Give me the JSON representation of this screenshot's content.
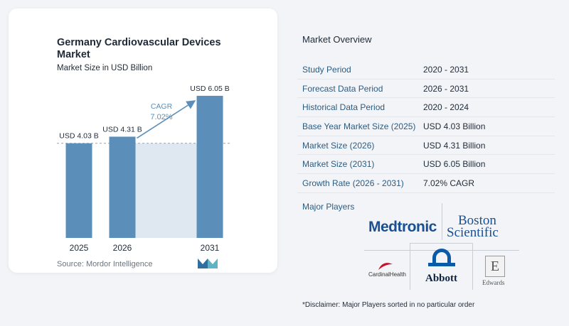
{
  "chart_data": {
    "type": "bar",
    "title": "Germany Cardiovascular Devices Market",
    "subtitle": "Market Size in USD Billion",
    "categories": [
      "2025",
      "2026",
      "2031"
    ],
    "values": [
      4.03,
      4.31,
      6.05
    ],
    "value_labels": [
      "USD 4.03 B",
      "USD 4.31 B",
      "USD 6.05 B"
    ],
    "cagr_label": "CAGR",
    "cagr_value": "7.02%",
    "ylim": [
      0,
      6.5
    ],
    "grid": false,
    "colors": {
      "bar": "#5b8fb9",
      "band": "#dfe8f1",
      "arrow": "#5b8fb9",
      "dash": "#8aa5bd"
    }
  },
  "source": "Source:  Mordor Intelligence",
  "overview": {
    "title": "Market Overview",
    "rows": [
      {
        "key": "Study Period",
        "value": "2020 - 2031"
      },
      {
        "key": "Forecast Data Period",
        "value": "2026 - 2031"
      },
      {
        "key": "Historical Data Period",
        "value": "2020 - 2024"
      },
      {
        "key": "Base Year Market Size (2025)",
        "value": "USD 4.03 Billion"
      },
      {
        "key": "Market Size (2026)",
        "value": "USD 4.31 Billion"
      },
      {
        "key": "Market Size (2031)",
        "value": "USD 6.05 Billion"
      },
      {
        "key": "Growth Rate (2026 - 2031)",
        "value": "7.02% CAGR"
      }
    ]
  },
  "players": {
    "title": "Major Players",
    "logos": {
      "medtronic": "Medtronic",
      "boston_line1": "Boston",
      "boston_line2": "Scientific",
      "cardinal": "CardinalHealth",
      "abbott": "Abbott",
      "edwards": "Edwards",
      "edwards_mark": "E"
    }
  },
  "disclaimer": "*Disclaimer: Major Players sorted in no particular order"
}
